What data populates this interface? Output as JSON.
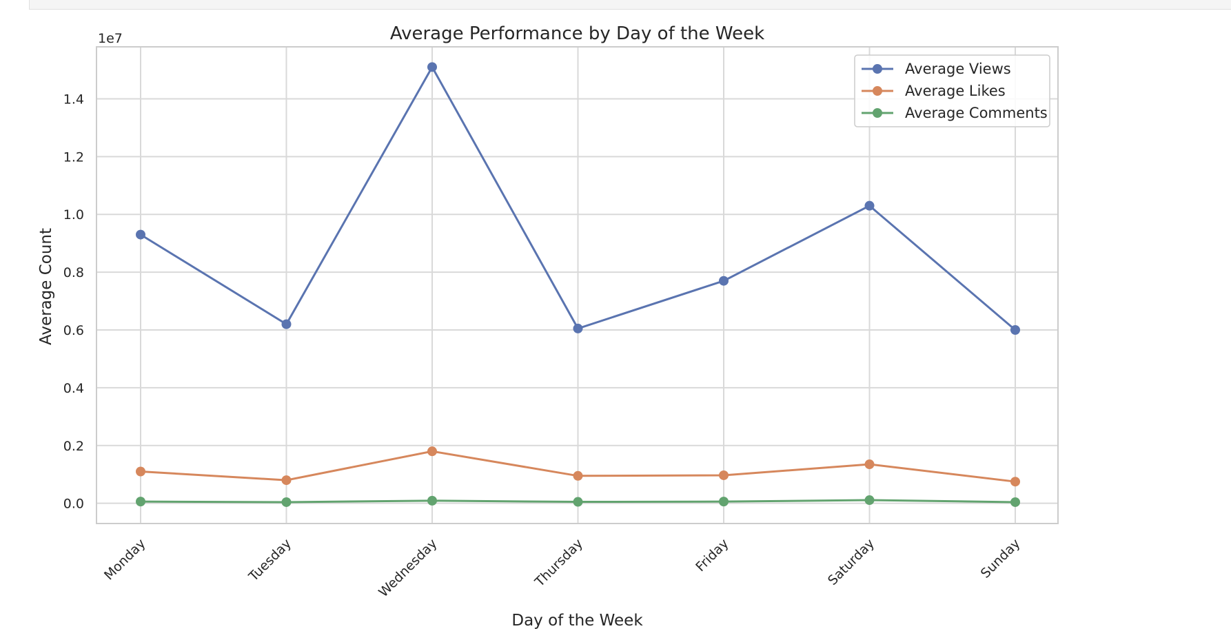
{
  "chart_data": {
    "type": "line",
    "title": "Average Performance by Day of the Week",
    "xlabel": "Day of the Week",
    "ylabel": "Average Count",
    "y_offset_label": "1e7",
    "categories": [
      "Monday",
      "Tuesday",
      "Wednesday",
      "Thursday",
      "Friday",
      "Saturday",
      "Sunday"
    ],
    "ylim": [
      -0.07,
      1.58
    ],
    "yticks": [
      0.0,
      0.2,
      0.4,
      0.6,
      0.8,
      1.0,
      1.2,
      1.4
    ],
    "ytick_labels": [
      "0.0",
      "0.2",
      "0.4",
      "0.6",
      "0.8",
      "1.0",
      "1.2",
      "1.4"
    ],
    "grid": true,
    "legend_position": "top-right",
    "series": [
      {
        "name": "Average Views",
        "color": "#5a74b0",
        "values": [
          0.93,
          0.62,
          1.51,
          0.605,
          0.77,
          1.03,
          0.6
        ]
      },
      {
        "name": "Average Likes",
        "color": "#d6875c",
        "values": [
          0.11,
          0.08,
          0.18,
          0.095,
          0.097,
          0.135,
          0.075
        ]
      },
      {
        "name": "Average Comments",
        "color": "#62a36f",
        "values": [
          0.006,
          0.004,
          0.009,
          0.005,
          0.006,
          0.011,
          0.004
        ]
      }
    ]
  }
}
